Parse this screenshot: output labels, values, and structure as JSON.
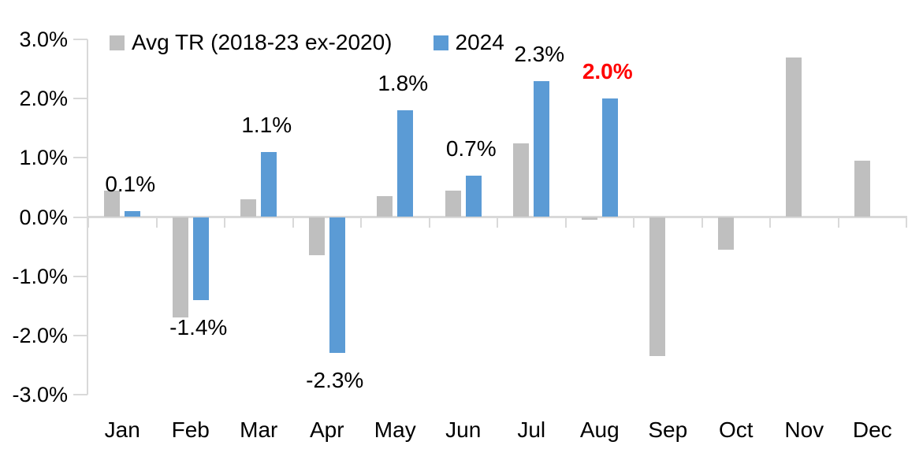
{
  "chart_data": {
    "type": "bar",
    "title": "",
    "categories": [
      "Jan",
      "Feb",
      "Mar",
      "Apr",
      "May",
      "Jun",
      "Jul",
      "Aug",
      "Sep",
      "Oct",
      "Nov",
      "Dec"
    ],
    "series": [
      {
        "name": "Avg TR (2018-23 ex-2020)",
        "color": "#BFBFBF",
        "values": [
          0.45,
          -1.7,
          0.3,
          -0.65,
          0.35,
          0.45,
          1.25,
          -0.05,
          -2.35,
          -0.55,
          2.7,
          0.95
        ]
      },
      {
        "name": "2024",
        "color": "#5B9BD5",
        "values": [
          0.1,
          -1.4,
          1.1,
          -2.3,
          1.8,
          0.7,
          2.3,
          2.0,
          null,
          null,
          null,
          null
        ]
      }
    ],
    "data_labels": [
      {
        "category": "Jan",
        "text": "0.1%",
        "highlight": false
      },
      {
        "category": "Feb",
        "text": "-1.4%",
        "highlight": false
      },
      {
        "category": "Mar",
        "text": "1.1%",
        "highlight": false
      },
      {
        "category": "Apr",
        "text": "-2.3%",
        "highlight": false
      },
      {
        "category": "May",
        "text": "1.8%",
        "highlight": false
      },
      {
        "category": "Jun",
        "text": "0.7%",
        "highlight": false
      },
      {
        "category": "Jul",
        "text": "2.3%",
        "highlight": false
      },
      {
        "category": "Aug",
        "text": "2.0%",
        "highlight": true
      }
    ],
    "y_axis": {
      "tick_labels": [
        "3.0%",
        "2.0%",
        "1.0%",
        "0.0%",
        "-1.0%",
        "-2.0%",
        "-3.0%"
      ],
      "tick_values": [
        3.0,
        2.0,
        1.0,
        0.0,
        -1.0,
        -2.0,
        -3.0
      ],
      "ylim": [
        -3.0,
        3.0
      ]
    },
    "xlabel": "",
    "ylabel": "",
    "grid": false,
    "legend_position": "top",
    "colors": {
      "axis": "#D9D9D9",
      "text": "#000000",
      "highlight": "#FF0000",
      "background": "#FFFFFF"
    }
  }
}
